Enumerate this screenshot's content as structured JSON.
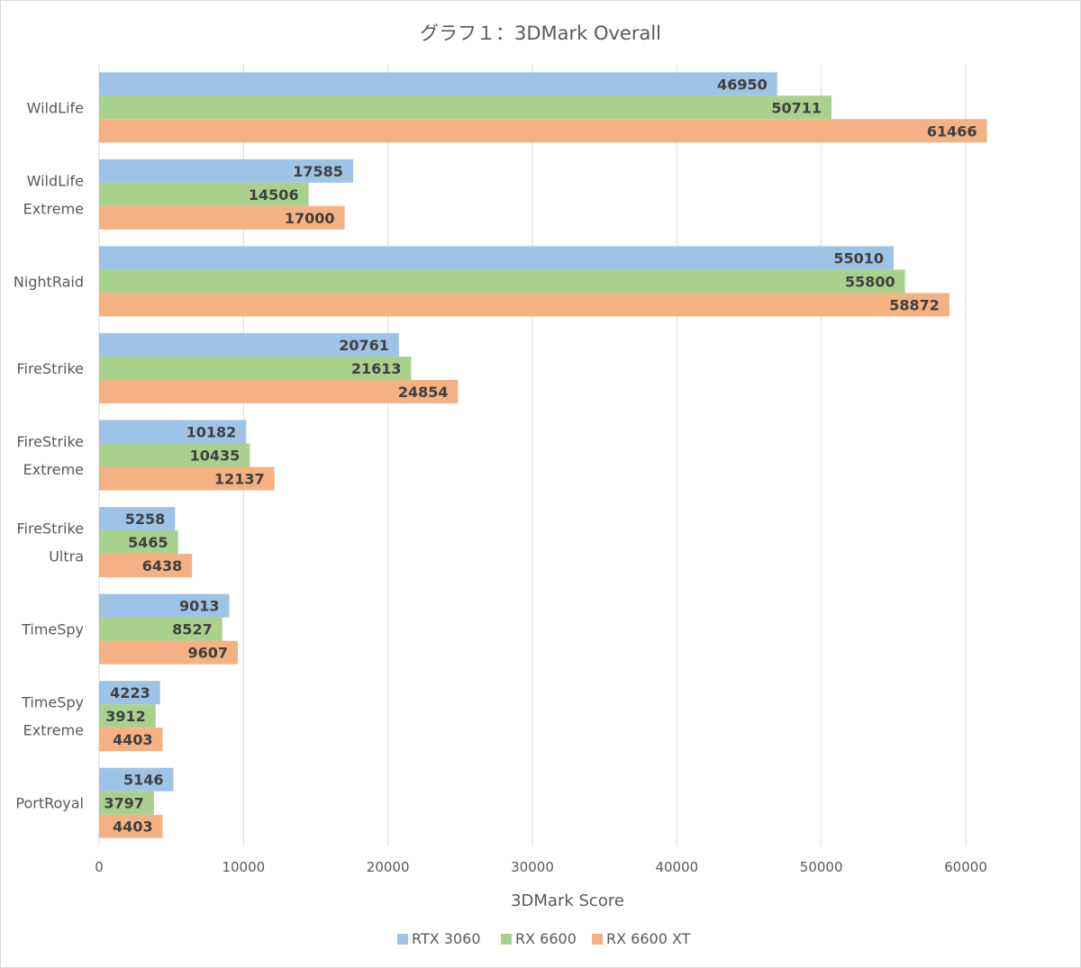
{
  "chart_data": {
    "type": "bar",
    "orientation": "horizontal",
    "title": "グラフ１：3DMark Overall",
    "xlabel": "3DMark Score",
    "ylabel": "",
    "xlim": [
      0,
      60000
    ],
    "x_ticks": [
      0,
      10000,
      20000,
      30000,
      40000,
      50000,
      60000
    ],
    "grid": "vertical",
    "legend_position": "bottom",
    "categories": [
      [
        "WildLife"
      ],
      [
        "WildLife",
        "Extreme"
      ],
      [
        "NightRaid"
      ],
      [
        "FireStrike"
      ],
      [
        "FireStrike",
        "Extreme"
      ],
      [
        "FireStrike",
        "Ultra"
      ],
      [
        "TimeSpy"
      ],
      [
        "TimeSpy",
        "Extreme"
      ],
      [
        "PortRoyal"
      ]
    ],
    "series": [
      {
        "name": "RTX 3060",
        "color": "#9DC3E6",
        "values": [
          46950,
          17585,
          55010,
          20761,
          10182,
          5258,
          9013,
          4223,
          5146
        ]
      },
      {
        "name": "RX 6600",
        "color": "#A9D18E",
        "values": [
          50711,
          14506,
          55800,
          21613,
          10435,
          5465,
          8527,
          3912,
          3797
        ]
      },
      {
        "name": "RX 6600 XT",
        "color": "#F4B183",
        "values": [
          61466,
          17000,
          58872,
          24854,
          12137,
          6438,
          9607,
          4403,
          4403
        ]
      }
    ]
  }
}
